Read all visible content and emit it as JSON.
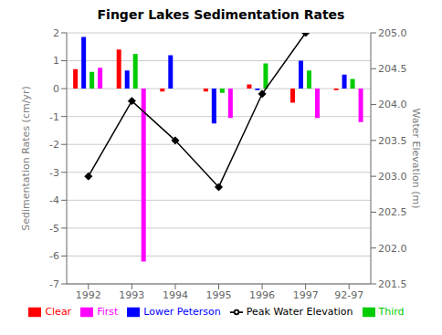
{
  "chart_data": {
    "type": "bar",
    "title": "Finger Lakes Sedimentation Rates",
    "categories": [
      "1992",
      "1993",
      "1994",
      "1995",
      "1996",
      "1997",
      "92-97"
    ],
    "series": [
      {
        "name": "Clear",
        "color": "#ff0000",
        "values": [
          0.7,
          1.4,
          -0.1,
          -0.1,
          0.15,
          -0.5,
          -0.05
        ]
      },
      {
        "name": "Lower Peterson",
        "color": "#0000ff",
        "values": [
          1.85,
          0.65,
          1.2,
          -1.25,
          -0.05,
          1.0,
          0.5
        ]
      },
      {
        "name": "Third",
        "color": "#00cc00",
        "values": [
          0.6,
          1.25,
          0.0,
          -0.15,
          0.9,
          0.65,
          0.35
        ]
      },
      {
        "name": "First",
        "color": "#ff00ff",
        "values": [
          0.75,
          -6.2,
          0.0,
          -1.05,
          0.0,
          -1.05,
          -1.2
        ]
      },
      {
        "name": "Peak Water Elevation",
        "type": "line",
        "axis": "y2",
        "color": "#000000",
        "marker": "diamond",
        "values": [
          203.0,
          204.05,
          203.5,
          202.85,
          204.15,
          205.0,
          null
        ]
      }
    ],
    "ylim": [
      -7,
      2
    ],
    "yticks": [
      -7,
      -6,
      -5,
      -4,
      -3,
      -2,
      -1,
      0,
      1,
      2
    ],
    "y2lim": [
      201.5,
      205.0
    ],
    "y2ticks": [
      201.5,
      {
        "value": 202.0,
        "label": "202.0"
      },
      202.5,
      {
        "value": 203.0,
        "label": "203.0"
      },
      203.5,
      {
        "value": 204.0,
        "label": "204.0"
      },
      204.5,
      {
        "value": 205.0,
        "label": "205.0"
      }
    ],
    "ylabel": "Sedimentation Rates (cm/yr)",
    "y2label": "Water Elevation (m)",
    "grid": true,
    "legend": "bottom"
  }
}
